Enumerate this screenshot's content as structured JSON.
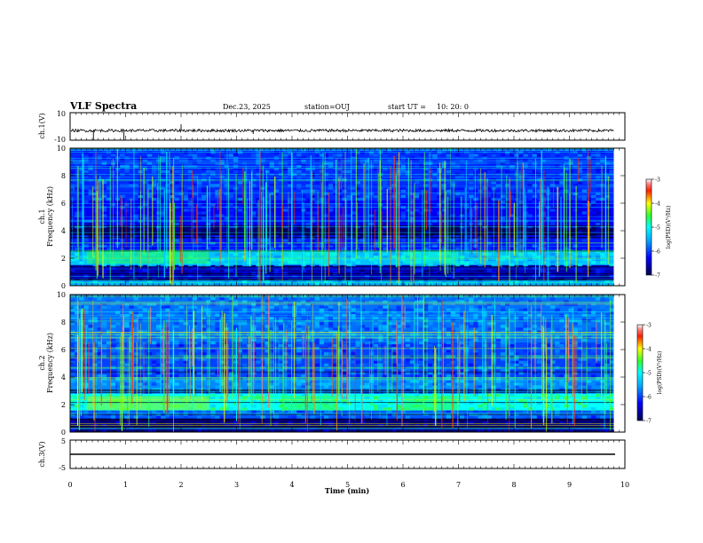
{
  "header": {
    "title": "VLF Spectra",
    "date": "Dec.23, 2025",
    "station": "station=OUJ",
    "start_label": "start  UT  =",
    "start_time": "10: 20: 0"
  },
  "chart_data": [
    {
      "type": "line",
      "panel": "ch1-waveform",
      "ylabel": "ch.1(V)",
      "ylim": [
        -10,
        10
      ],
      "y_ticks": [
        "10",
        "-10"
      ],
      "series": [
        {
          "name": "ch.1",
          "baseline": -3,
          "noise_amplitude": 1.0
        }
      ]
    },
    {
      "type": "heatmap",
      "panel": "ch1-spectrogram",
      "ylabel_top": "ch.1",
      "ylabel": "Frequency  (kHz)",
      "ylim": [
        0,
        10
      ],
      "y_ticks": [
        "0",
        "2",
        "4",
        "6",
        "8",
        "10"
      ],
      "xlim": [
        0,
        9.8
      ],
      "bands": [
        {
          "lo": 0.0,
          "hi": 0.5,
          "level": -5.5
        },
        {
          "lo": 0.5,
          "hi": 1.5,
          "level": -6.6
        },
        {
          "lo": 1.5,
          "hi": 2.6,
          "level": -5.4
        },
        {
          "lo": 2.6,
          "hi": 3.7,
          "level": -6.2
        },
        {
          "lo": 3.7,
          "hi": 4.3,
          "level": -6.9
        },
        {
          "lo": 4.3,
          "hi": 6.2,
          "level": -6.3
        },
        {
          "lo": 6.2,
          "hi": 10.0,
          "level": -6.1
        }
      ]
    },
    {
      "type": "heatmap",
      "panel": "ch2-spectrogram",
      "ylabel_top": "ch.2",
      "ylabel": "Frequency  (kHz)",
      "ylim": [
        0,
        10
      ],
      "y_ticks": [
        "0",
        "2",
        "4",
        "6",
        "8",
        "10"
      ],
      "xlim": [
        0,
        9.8
      ],
      "bands": [
        {
          "lo": 0.0,
          "hi": 1.0,
          "level": -6.8
        },
        {
          "lo": 1.0,
          "hi": 1.6,
          "level": -5.9
        },
        {
          "lo": 1.6,
          "hi": 2.8,
          "level": -5.0
        },
        {
          "lo": 2.8,
          "hi": 4.0,
          "level": -5.7
        },
        {
          "lo": 4.0,
          "hi": 6.5,
          "level": -6.0
        },
        {
          "lo": 6.5,
          "hi": 10.0,
          "level": -5.8
        }
      ]
    },
    {
      "type": "line",
      "panel": "ch3-waveform",
      "ylabel": "ch.3(V)",
      "ylim": [
        -5,
        5
      ],
      "y_ticks": [
        "5",
        "-5"
      ],
      "series": [
        {
          "name": "ch.3",
          "baseline": 0
        }
      ]
    }
  ],
  "x_axis": {
    "label": "Time  (min)",
    "range": [
      0,
      10
    ],
    "ticks": [
      "0",
      "1",
      "2",
      "3",
      "4",
      "5",
      "6",
      "7",
      "8",
      "9",
      "10"
    ]
  },
  "colorbar": {
    "range": [
      -7,
      -3
    ],
    "ticks": [
      "-3",
      "-4",
      "-5",
      "-6",
      "-7"
    ],
    "label": "log(PSD)(V²/Hz)"
  },
  "colors": {
    "low": "#000080",
    "mid_low": "#0050ff",
    "mid": "#00d0ff",
    "mid_high": "#30ff60",
    "high": "#ffff00",
    "peak": "#ff0000"
  }
}
